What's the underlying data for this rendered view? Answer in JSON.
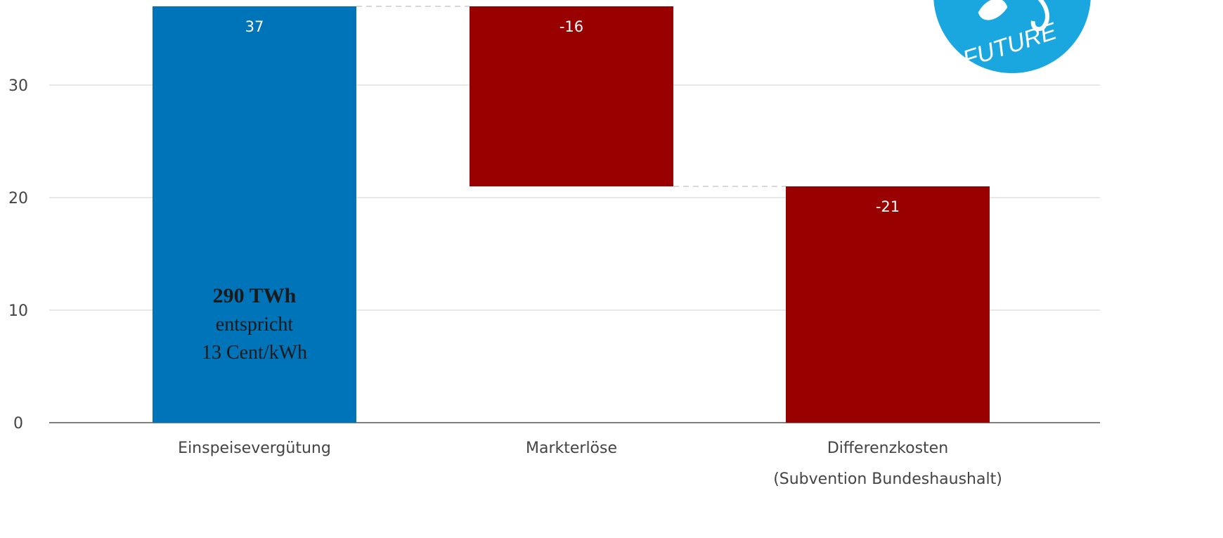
{
  "chart_data": {
    "type": "waterfall",
    "categories": [
      "Einspeisevergütung",
      "Markterlöse",
      "Differenzkosten"
    ],
    "category_sublabels": [
      "",
      "",
      "(Subvention Bundeshaushalt)"
    ],
    "values": [
      37,
      -16,
      -21
    ],
    "data_labels": [
      "37",
      "-16",
      "-21"
    ],
    "yticks": [
      "0",
      "10",
      "20",
      "30"
    ],
    "ylim": [
      0,
      37
    ],
    "grid": true,
    "title": "",
    "xlabel": "",
    "ylabel": "",
    "colors": {
      "positive": "#0074b8",
      "negative": "#990000",
      "grid": "#d9d9d9",
      "axis": "#555555",
      "connector": "#cccccc"
    },
    "annotation": {
      "line1": "290 TWh",
      "line2": "entspricht",
      "line3": "13 Cent/kWh"
    }
  },
  "logo": {
    "text": "FUTURE",
    "color": "#1aa7e0",
    "icon": "leaf-plug-icon"
  }
}
